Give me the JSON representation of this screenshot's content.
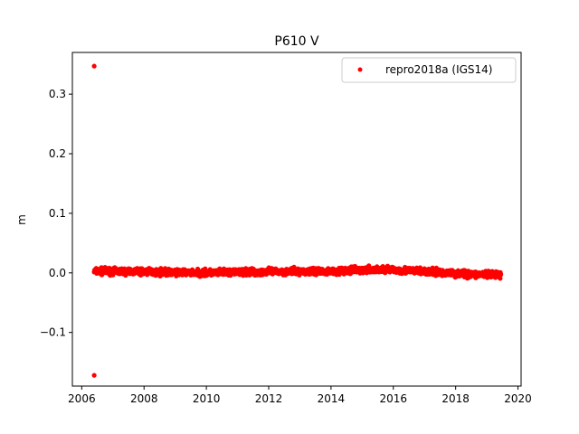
{
  "chart_data": {
    "type": "scatter",
    "title": "P610 V",
    "xlabel": "",
    "ylabel": "m",
    "xlim": [
      2005.7,
      2020.1
    ],
    "ylim": [
      -0.19,
      0.37
    ],
    "xticks": [
      2006,
      2008,
      2010,
      2012,
      2014,
      2016,
      2018,
      2020
    ],
    "yticks": [
      -0.1,
      0.0,
      0.1,
      0.2,
      0.3
    ],
    "ytick_labels": [
      "−0.1",
      "0.0",
      "0.1",
      "0.2",
      "0.3"
    ],
    "grid": false,
    "legend_position": "top-right",
    "series": [
      {
        "name": "repro2018a (IGS14)",
        "color": "#ff0000",
        "marker": "circle",
        "x_range": [
          2006.4,
          2019.45
        ],
        "trend": [
          {
            "x": 2006.4,
            "y": 0.003
          },
          {
            "x": 2008.0,
            "y": 0.002
          },
          {
            "x": 2010.0,
            "y": 0.0
          },
          {
            "x": 2012.0,
            "y": 0.002
          },
          {
            "x": 2014.0,
            "y": 0.003
          },
          {
            "x": 2015.8,
            "y": 0.006
          },
          {
            "x": 2017.0,
            "y": 0.002
          },
          {
            "x": 2018.5,
            "y": -0.002
          },
          {
            "x": 2019.45,
            "y": -0.004
          }
        ],
        "scatter_spread": 0.008,
        "outliers": [
          {
            "x": 2006.4,
            "y": 0.347
          },
          {
            "x": 2006.4,
            "y": -0.172
          }
        ]
      }
    ]
  }
}
